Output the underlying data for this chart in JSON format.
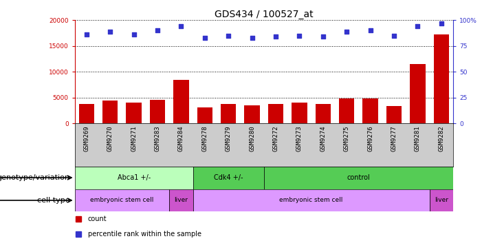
{
  "title": "GDS434 / 100527_at",
  "samples": [
    "GSM9269",
    "GSM9270",
    "GSM9271",
    "GSM9283",
    "GSM9284",
    "GSM9278",
    "GSM9279",
    "GSM9280",
    "GSM9272",
    "GSM9273",
    "GSM9274",
    "GSM9275",
    "GSM9276",
    "GSM9277",
    "GSM9281",
    "GSM9282"
  ],
  "counts": [
    3800,
    4500,
    4100,
    4600,
    8500,
    3100,
    3800,
    3500,
    3800,
    4000,
    3800,
    4800,
    4900,
    3400,
    11500,
    17300
  ],
  "percentiles": [
    86,
    89,
    86,
    90,
    94,
    83,
    85,
    83,
    84,
    85,
    84,
    89,
    90,
    85,
    94,
    97
  ],
  "ylim_left": [
    0,
    20000
  ],
  "ylim_right": [
    0,
    100
  ],
  "yticks_left": [
    0,
    5000,
    10000,
    15000,
    20000
  ],
  "yticks_right": [
    0,
    25,
    50,
    75,
    100
  ],
  "ytick_labels_right": [
    "0",
    "25",
    "50",
    "75",
    "100%"
  ],
  "bar_color": "#cc0000",
  "dot_color": "#3333cc",
  "tick_bg_color": "#cccccc",
  "geno_color_light": "#bbffbb",
  "geno_color_dark": "#55cc55",
  "cell_color_light": "#dd99ff",
  "cell_color_dark": "#cc55cc",
  "legend_count_label": "count",
  "legend_percentile_label": "percentile rank within the sample",
  "genotype_label": "genotype/variation",
  "celltype_label": "cell type",
  "title_fontsize": 10,
  "tick_fontsize": 6.5,
  "label_fontsize": 8,
  "group_fontsize": 7,
  "geno_data": [
    {
      "label": "Abca1 +/-",
      "start": 0,
      "end": 4,
      "color": "#bbffbb"
    },
    {
      "label": "Cdk4 +/-",
      "start": 5,
      "end": 7,
      "color": "#55cc55"
    },
    {
      "label": "control",
      "start": 8,
      "end": 15,
      "color": "#55cc55"
    }
  ],
  "cell_data": [
    {
      "label": "embryonic stem cell",
      "start": 0,
      "end": 3,
      "color": "#dd99ff"
    },
    {
      "label": "liver",
      "start": 4,
      "end": 4,
      "color": "#cc55cc"
    },
    {
      "label": "embryonic stem cell",
      "start": 5,
      "end": 14,
      "color": "#dd99ff"
    },
    {
      "label": "liver",
      "start": 15,
      "end": 15,
      "color": "#cc55cc"
    }
  ]
}
